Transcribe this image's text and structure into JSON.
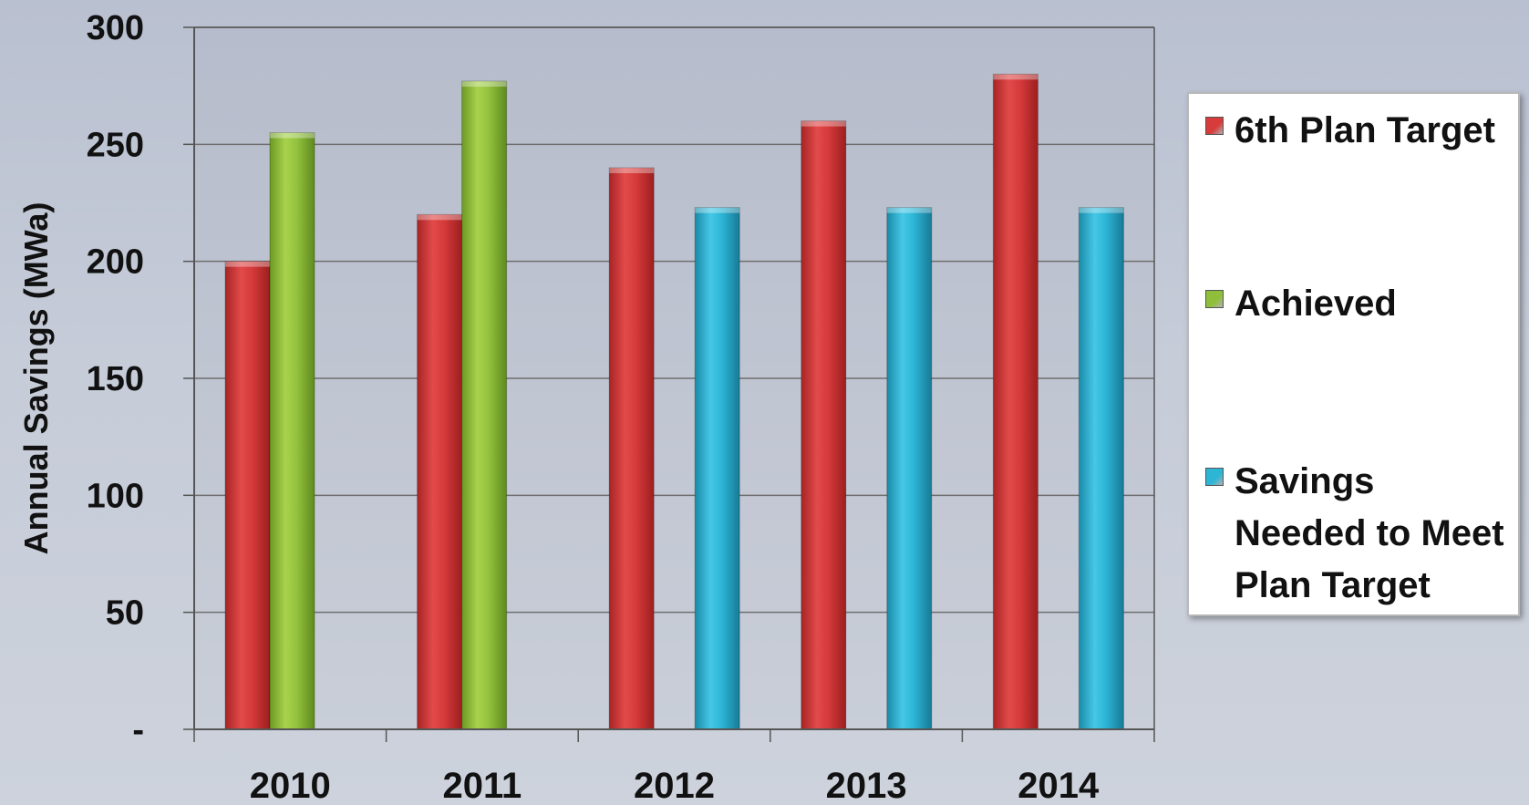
{
  "chart_data": {
    "type": "bar",
    "title": "",
    "xlabel": "",
    "ylabel": "Annual Savings (MWa)",
    "ylim": [
      0,
      300
    ],
    "yticks": [
      {
        "value": 0,
        "label": "-"
      },
      {
        "value": 50,
        "label": "50"
      },
      {
        "value": 100,
        "label": "100"
      },
      {
        "value": 150,
        "label": "150"
      },
      {
        "value": 200,
        "label": "200"
      },
      {
        "value": 250,
        "label": "250"
      },
      {
        "value": 300,
        "label": "300"
      }
    ],
    "grid": true,
    "legend_position": "right",
    "categories": [
      "2010",
      "2011",
      "2012",
      "2013",
      "2014"
    ],
    "series": [
      {
        "name": "6th Plan Target",
        "color": "#d73b3b",
        "values": [
          200,
          220,
          240,
          260,
          280
        ]
      },
      {
        "name": "Achieved",
        "color": "#8fbf3a",
        "values": [
          255,
          277,
          null,
          null,
          null
        ]
      },
      {
        "name": "Savings Needed to Meet Plan Target",
        "color": "#2db5d6",
        "values": [
          null,
          null,
          223,
          223,
          223
        ]
      }
    ]
  }
}
